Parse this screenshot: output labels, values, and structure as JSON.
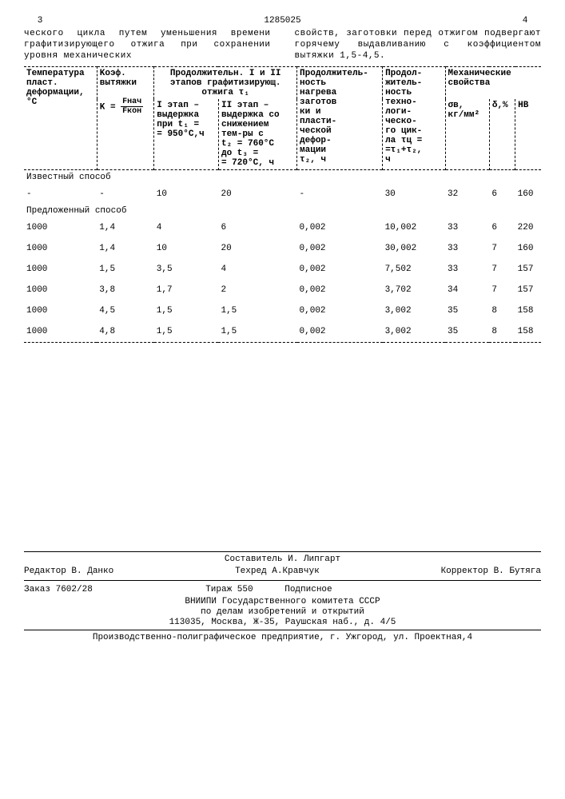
{
  "doc_number": "1285025",
  "col_left_num": "3",
  "col_right_num": "4",
  "intro_left": "ческого цикла путем уменьшения времени графитизирующего отжига при сохранении уровня механических",
  "intro_right": "свойств, заготовки перед отжигом подвергают горячему выдавливанию с коэффициентом вытяжки 1,5-4,5.",
  "headers": {
    "h1": "Температура\nпласт.\nдеформации,\n°С",
    "h2_top": "Kоэф.\nвытяжки",
    "h2_formula_k": "K =",
    "h2_frac_top": "Fнач",
    "h2_frac_bot": "Fкон",
    "h3": "Продолжительн. I и II\nэтапов графитизирующ.\nотжига τ₁",
    "h3a": "I этап –\nвыдержка\nпри t₁ =\n= 950°С,ч",
    "h3b": "II этап –\nвыдержка со\nснижением\nтем-ры с\nt₂ = 760°C\nдо t₃ =\n= 720°С, ч",
    "h4": "Продолжитель-\nность\nнагрева\nзаготов\nки и\nпласти-\nческой\nдефор-\nмации\nτ₂, ч",
    "h5": "Продол-\nжитель-\nность\nтехно-\nлоги-\nческо-\nго цик-\nла τц =\n=τ₁+τ₂,\nч",
    "h6": "Механические\nсвойства",
    "h6a": "σв,\nкг/мм²",
    "h6b": "δ,%",
    "h6c": "HB"
  },
  "section1": "Известный способ",
  "section2": "Предложенный способ",
  "rows": [
    {
      "sec": 1,
      "t": "-",
      "k": "-",
      "e1": "10",
      "e2": "20",
      "t2": "-",
      "tc": "30",
      "sv": "32",
      "d": "6",
      "hb": "160"
    },
    {
      "sec": 2,
      "t": "1000",
      "k": "1,4",
      "e1": "4",
      "e2": "6",
      "t2": "0,002",
      "tc": "10,002",
      "sv": "33",
      "d": "6",
      "hb": "220"
    },
    {
      "sec": 2,
      "t": "1000",
      "k": "1,4",
      "e1": "10",
      "e2": "20",
      "t2": "0,002",
      "tc": "30,002",
      "sv": "33",
      "d": "7",
      "hb": "160"
    },
    {
      "sec": 2,
      "t": "1000",
      "k": "1,5",
      "e1": "3,5",
      "e2": "4",
      "t2": "0,002",
      "tc": "7,502",
      "sv": "33",
      "d": "7",
      "hb": "157"
    },
    {
      "sec": 2,
      "t": "1000",
      "k": "3,8",
      "e1": "1,7",
      "e2": "2",
      "t2": "0,002",
      "tc": "3,702",
      "sv": "34",
      "d": "7",
      "hb": "157"
    },
    {
      "sec": 2,
      "t": "1000",
      "k": "4,5",
      "e1": "1,5",
      "e2": "1,5",
      "t2": "0,002",
      "tc": "3,002",
      "sv": "35",
      "d": "8",
      "hb": "158"
    },
    {
      "sec": 2,
      "t": "1000",
      "k": "4,8",
      "e1": "1,5",
      "e2": "1,5",
      "t2": "0,002",
      "tc": "3,002",
      "sv": "35",
      "d": "8",
      "hb": "158"
    }
  ],
  "footer": {
    "compiler": "Составитель И. Липгарт",
    "editor": "Редактор В. Данко",
    "techred": "Техред А.Кравчук",
    "corrector": "Корректор В. Бутяга",
    "order": "Заказ 7602/28",
    "tirage": "Тираж 550",
    "subscribe": "Подписное",
    "org1": "ВНИИПИ Государственного комитета СССР",
    "org2": "по делам изобретений и открытий",
    "addr1": "113035, Москва, Ж-35, Раушская наб., д. 4/5",
    "addr2": "Производственно-полиграфическое предприятие, г. Ужгород, ул. Проектная,4"
  },
  "colors": {
    "text": "#000000",
    "background": "#ffffff"
  },
  "col_widths": [
    "62",
    "62",
    "70",
    "85",
    "68",
    "68",
    "48",
    "28",
    "28"
  ]
}
